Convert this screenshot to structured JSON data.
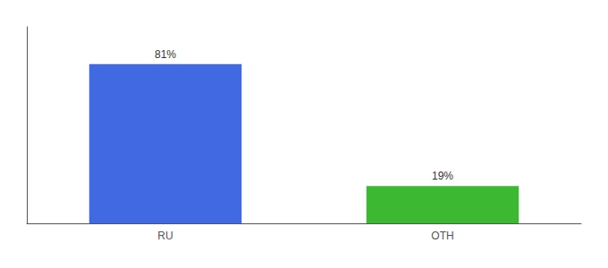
{
  "chart_data": {
    "type": "bar",
    "categories": [
      "RU",
      "OTH"
    ],
    "values": [
      81,
      19
    ],
    "value_labels": [
      "81%",
      "19%"
    ],
    "colors": [
      "#4169e1",
      "#3cb832"
    ],
    "ylim": [
      0,
      100
    ],
    "tick_labels": "x",
    "data_labels": true,
    "grid": false
  }
}
